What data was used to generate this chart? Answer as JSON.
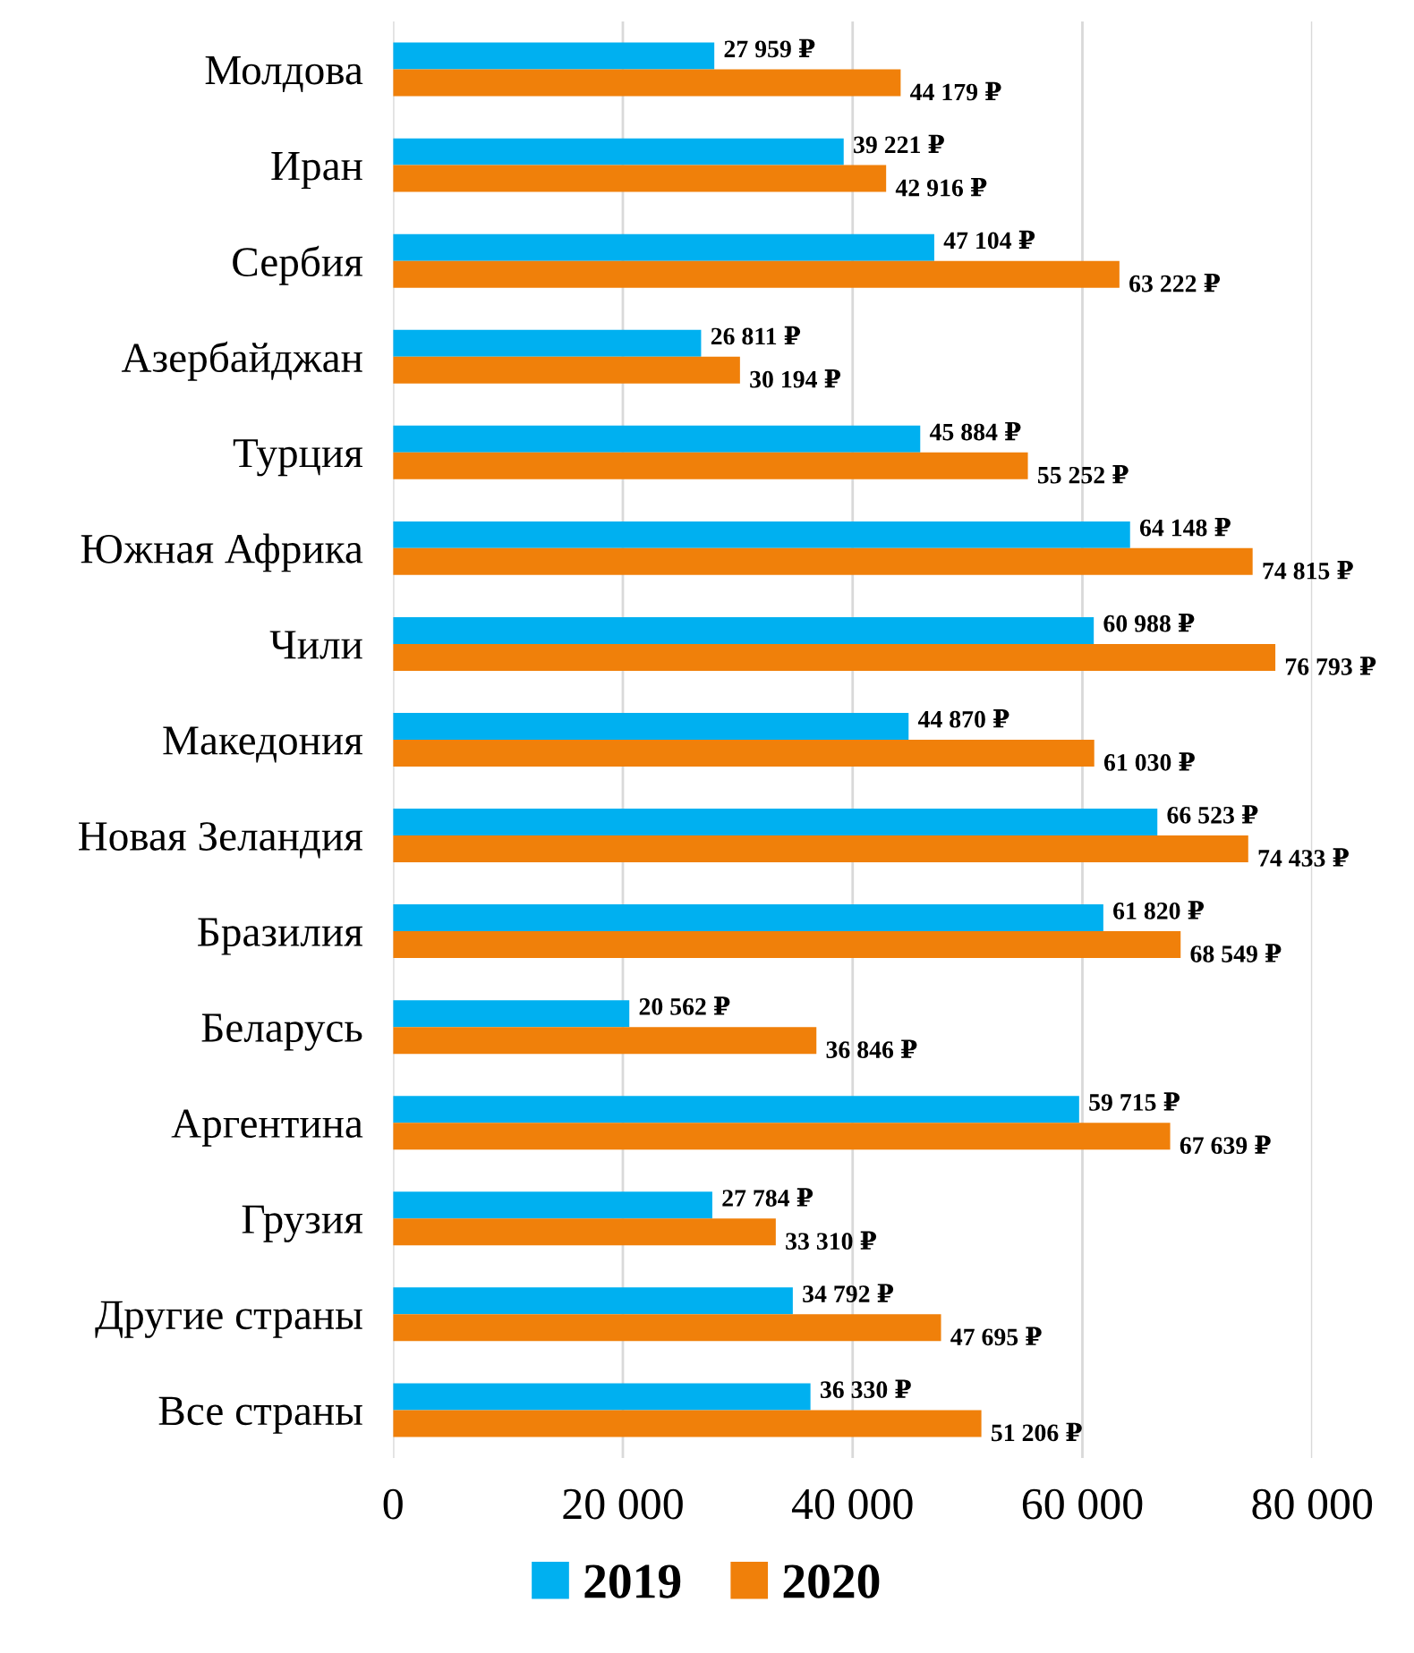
{
  "chart_data": {
    "type": "bar",
    "orientation": "horizontal",
    "categories": [
      "Молдова",
      "Иран",
      "Сербия",
      "Азербайджан",
      "Турция",
      "Южная Африка",
      "Чили",
      "Македония",
      "Новая Зеландия",
      "Бразилия",
      "Беларусь",
      "Аргентина",
      "Грузия",
      "Другие страны",
      "Все страны"
    ],
    "series": [
      {
        "name": "2019",
        "color": "#00b0f0",
        "values": [
          27959,
          39221,
          47104,
          26811,
          45884,
          64148,
          60988,
          44870,
          66523,
          61820,
          20562,
          59715,
          27784,
          34792,
          36330
        ],
        "value_labels": [
          "27 959 ₽",
          "39 221 ₽",
          "47 104 ₽",
          "26 811 ₽",
          "45 884 ₽",
          "64 148 ₽",
          "60 988 ₽",
          "44 870 ₽",
          "66 523 ₽",
          "61 820 ₽",
          "20 562 ₽",
          "59 715 ₽",
          "27 784 ₽",
          "34 792 ₽",
          "36 330 ₽"
        ]
      },
      {
        "name": "2020",
        "color": "#f0800a",
        "values": [
          44179,
          42916,
          63222,
          30194,
          55252,
          74815,
          76793,
          61030,
          74433,
          68549,
          36846,
          67639,
          33310,
          47695,
          51206
        ],
        "value_labels": [
          "44 179 ₽",
          "42 916 ₽",
          "63 222 ₽",
          "30 194 ₽",
          "55 252 ₽",
          "74 815 ₽",
          "76 793 ₽",
          "61 030 ₽",
          "74 433 ₽",
          "68 549 ₽",
          "36 846 ₽",
          "67 639 ₽",
          "33 310 ₽",
          "47 695 ₽",
          "51 206 ₽"
        ]
      }
    ],
    "xlim": [
      0,
      80000
    ],
    "xticks": [
      0,
      {
        "value": 20000,
        "label": "20 000"
      },
      {
        "value": 40000,
        "label": "40 000"
      },
      {
        "value": 60000,
        "label": "60 000"
      },
      {
        "value": 80000,
        "label": "80 000"
      }
    ],
    "grid": "x",
    "legend": "bottom"
  }
}
